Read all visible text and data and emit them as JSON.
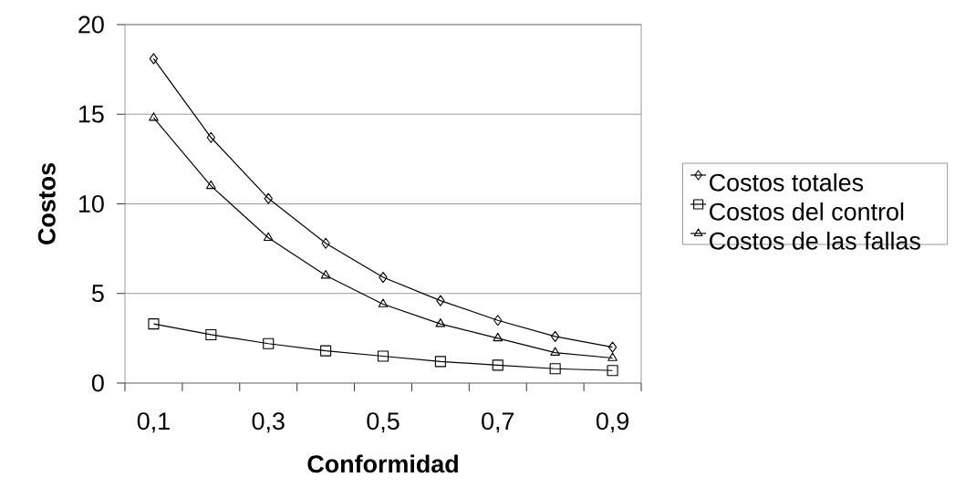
{
  "chart_data": {
    "type": "line",
    "xlabel": "Conformidad",
    "ylabel": "Costos",
    "categories": [
      "0,1",
      null,
      "0,3",
      null,
      "0,5",
      null,
      "0,7",
      null,
      "0,9"
    ],
    "series": [
      {
        "name": "Costos totales",
        "color": "#000000",
        "marker": "diamond",
        "values": [
          18.1,
          13.7,
          10.3,
          7.8,
          5.9,
          4.6,
          3.5,
          2.6,
          2.0
        ]
      },
      {
        "name": "Costos del control",
        "color": "#000000",
        "marker": "square",
        "values": [
          3.3,
          2.7,
          2.2,
          1.8,
          1.5,
          1.2,
          1.0,
          0.8,
          0.7
        ]
      },
      {
        "name": "Costos de las fallas",
        "color": "#000000",
        "marker": "triangle",
        "values": [
          14.8,
          11.0,
          8.1,
          6.0,
          4.4,
          3.3,
          2.5,
          1.7,
          1.4
        ]
      }
    ],
    "ylim": [
      0,
      20
    ],
    "yticks": [
      0,
      5,
      10,
      15,
      20
    ],
    "grid": "y",
    "legend": "right",
    "line_style": "solid"
  }
}
